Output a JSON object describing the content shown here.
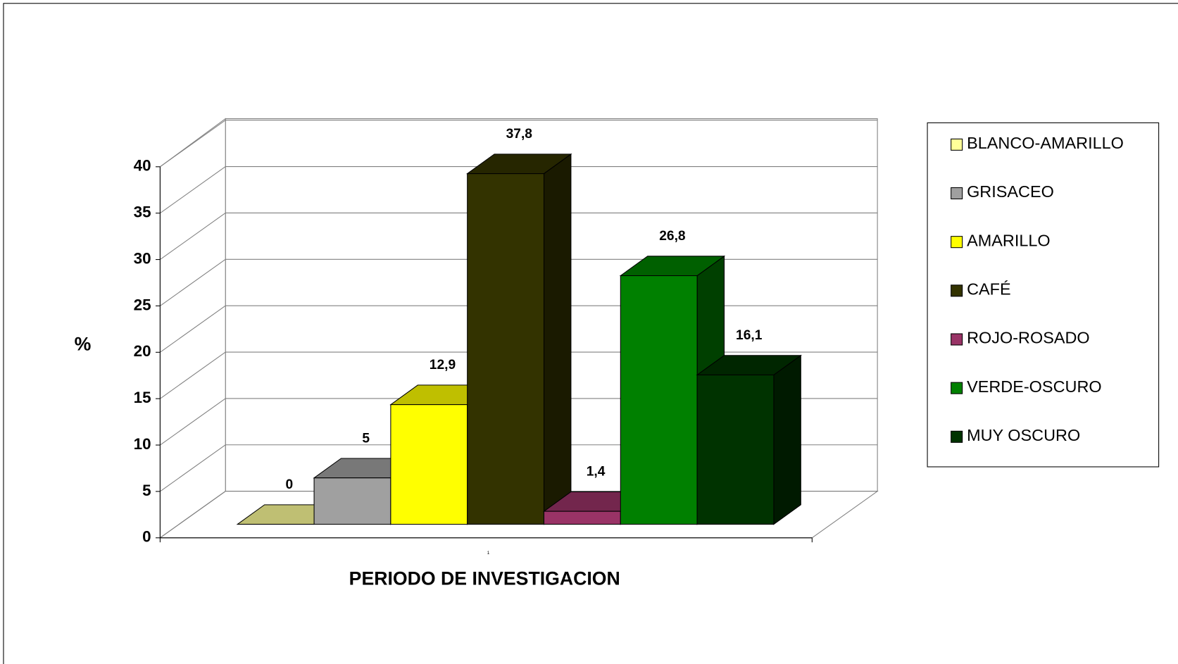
{
  "chart_data": {
    "type": "bar3d",
    "xlabel": "PERIODO DE INVESTIGACION",
    "ylabel": "%",
    "categories": [
      "1"
    ],
    "ylim": [
      0,
      40
    ],
    "yticks": [
      0,
      5,
      10,
      15,
      20,
      25,
      30,
      35,
      40
    ],
    "grid": true,
    "legend": "right",
    "series": [
      {
        "name": "BLANCO-AMARILLO",
        "color": "#ffff99",
        "values": [
          0
        ],
        "value_labels": [
          "0"
        ]
      },
      {
        "name": "GRISACEO",
        "color": "#a0a0a0",
        "values": [
          5
        ],
        "value_labels": [
          "5"
        ]
      },
      {
        "name": "AMARILLO",
        "color": "#ffff00",
        "values": [
          12.9
        ],
        "value_labels": [
          "12,9"
        ]
      },
      {
        "name": "CAFÉ",
        "color": "#333300",
        "values": [
          37.8
        ],
        "value_labels": [
          "37,8"
        ]
      },
      {
        "name": "ROJO-ROSADO",
        "color": "#993366",
        "values": [
          1.4
        ],
        "value_labels": [
          "1,4"
        ]
      },
      {
        "name": "VERDE-OSCURO",
        "color": "#008000",
        "values": [
          26.8
        ],
        "value_labels": [
          "26,8"
        ]
      },
      {
        "name": "MUY OSCURO",
        "color": "#003300",
        "values": [
          16.1
        ],
        "value_labels": [
          "16,1"
        ]
      }
    ]
  }
}
